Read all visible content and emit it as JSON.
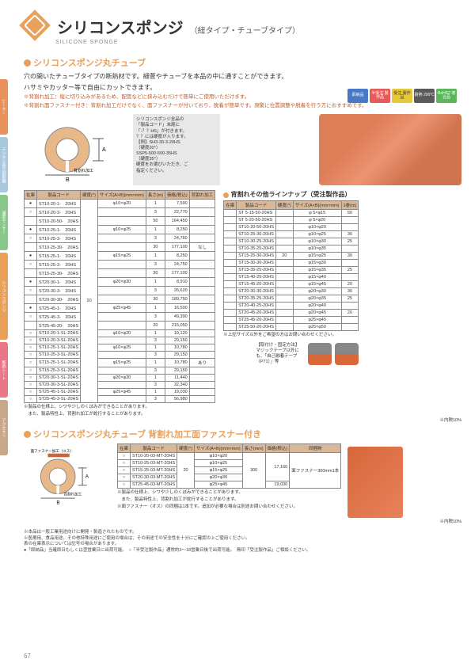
{
  "page_number": "67",
  "header": {
    "title_jp": "シリコンスポンジ",
    "title_sub": "（紐タイプ・チューブタイプ）",
    "title_en": "SILICONE SPONGE"
  },
  "sidebar_tabs": [
    {
      "label": "ヒーター",
      "color": "#e8915a"
    },
    {
      "label": "デジタル表示調節器",
      "color": "#a8c8e0"
    },
    {
      "label": "温度センサー",
      "color": "#88c888"
    },
    {
      "label": "シリコンスポンジ",
      "color": "#e8a05a"
    },
    {
      "label": "断熱シート",
      "color": "#e87888"
    },
    {
      "label": "アクセサリ",
      "color": "#c8a888"
    }
  ],
  "section1": {
    "title": "シリコンスポンジ丸チューブ",
    "bullet_color": "#e8a05a",
    "desc1": "穴の開いたチューブタイプの断熱材です。細菅やチューブを本品の中に通すことができます。",
    "desc2": "ハサミやカッター等で自由にカットできます。",
    "note1": "※背割れ加工：縦に切り込みがあるため、配管などに挟み込むだけで簡単にご使用いただけます。",
    "note2": "※背割れ面ファスナー付き：背割れ加工だけでなく、面ファスナーが付いており、脱着が簡単です。頻繁に位置調整や脱着を行う方におすすめです。",
    "diagram_label_a": "A",
    "diagram_label_b": "B",
    "diagram_label_cut": "背割れ加工"
  },
  "badges": [
    {
      "text": "即納品",
      "bg": "#4878c8"
    },
    {
      "text": "半受注\\n製作品",
      "bg": "#e85a5a"
    },
    {
      "text": "受注\\n製作品",
      "bg": "#e8c838"
    },
    {
      "text": "耐熱\\n200℃",
      "bg": "#5a5a5a"
    },
    {
      "text": "RoHS2\\n適合品",
      "bg": "#58b858"
    }
  ],
  "code_box": {
    "line1": "シリコンスポンジ全品の",
    "line2": "「製品コード」末尾に",
    "line3": "「-？？HS」が付きます。",
    "line4": "？？には硬度が入ります。",
    "line5": "【例】SH3-30-3-20HS",
    "line6": "（硬度20°）",
    "line7": "SSP5-500-500-35HS",
    "line8": "（硬度35°）",
    "line9": "硬度をお選びいただき、ご",
    "line10": "指定ください。"
  },
  "main_table": {
    "headers": [
      "在庫",
      "製品コード",
      "硬度(°)",
      "サイズ(A×B)(mm×mm)",
      "長さ(m)",
      "価格(税込)",
      "背割れ加工"
    ],
    "hardness": "20",
    "rows": [
      {
        "stock": "●",
        "code": "ST10-20-1-　20HS",
        "size": "φ10×φ20",
        "len": "1",
        "price": "7,590",
        "cut": ""
      },
      {
        "stock": "○",
        "code": "ST10-20-3-　20HS",
        "size": "",
        "len": "3",
        "price": "22,770",
        "cut": ""
      },
      {
        "stock": "",
        "code": "ST10-20-50-　20HS",
        "size": "",
        "len": "50",
        "price": "164,450",
        "cut": ""
      },
      {
        "stock": "●",
        "code": "ST10-25-1-　20HS",
        "size": "φ10×φ25",
        "len": "1",
        "price": "8,250",
        "cut": ""
      },
      {
        "stock": "○",
        "code": "ST10-25-3-　20HS",
        "size": "",
        "len": "3",
        "price": "24,750",
        "cut": ""
      },
      {
        "stock": "",
        "code": "ST10-25-30-　20HS",
        "size": "",
        "len": "30",
        "price": "177,100",
        "cut": "なし"
      },
      {
        "stock": "●",
        "code": "ST15-25-1-　20HS",
        "size": "φ15×φ25",
        "len": "1",
        "price": "8,250",
        "cut": ""
      },
      {
        "stock": "○",
        "code": "ST15-25-3-　20HS",
        "size": "",
        "len": "3",
        "price": "24,750",
        "cut": ""
      },
      {
        "stock": "",
        "code": "ST15-25-30-　20HS",
        "size": "",
        "len": "30",
        "price": "177,100",
        "cut": ""
      },
      {
        "stock": "●",
        "code": "ST20-30-1-　20HS",
        "size": "φ20×φ30",
        "len": "1",
        "price": "8,910",
        "cut": ""
      },
      {
        "stock": "○",
        "code": "ST20-30-3-　20HS",
        "size": "",
        "len": "3",
        "price": "26,620",
        "cut": ""
      },
      {
        "stock": "",
        "code": "ST20-30-30-　20HS",
        "size": "",
        "len": "30",
        "price": "189,750",
        "cut": ""
      },
      {
        "stock": "●",
        "code": "ST25-45-1-　20HS",
        "size": "φ25×φ45",
        "len": "1",
        "price": "16,500",
        "cut": ""
      },
      {
        "stock": "○",
        "code": "ST25-45-3-　20HS",
        "size": "",
        "len": "3",
        "price": "49,390",
        "cut": ""
      },
      {
        "stock": "",
        "code": "ST25-45-20-　20HS",
        "size": "",
        "len": "20",
        "price": "215,050",
        "cut": ""
      },
      {
        "stock": "○",
        "code": "ST10-20-1-SL-20HS",
        "size": "φ10×φ20",
        "len": "1",
        "price": "10,120",
        "cut": ""
      },
      {
        "stock": "○",
        "code": "ST10-20-3-SL-20HS",
        "size": "",
        "len": "3",
        "price": "29,150",
        "cut": ""
      },
      {
        "stock": "○",
        "code": "ST10-25-1-SL-20HS",
        "size": "φ10×φ25",
        "len": "1",
        "price": "10,780",
        "cut": ""
      },
      {
        "stock": "○",
        "code": "ST10-25-3-SL-20HS",
        "size": "",
        "len": "3",
        "price": "29,150",
        "cut": ""
      },
      {
        "stock": "○",
        "code": "ST15-25-1-SL-20HS",
        "size": "φ15×φ25",
        "len": "1",
        "price": "10,780",
        "cut": "あり"
      },
      {
        "stock": "○",
        "code": "ST15-25-3-SL-20HS",
        "size": "",
        "len": "3",
        "price": "29,150",
        "cut": ""
      },
      {
        "stock": "○",
        "code": "ST20-30-1-SL-20HS",
        "size": "φ20×φ30",
        "len": "1",
        "price": "11,440",
        "cut": ""
      },
      {
        "stock": "○",
        "code": "ST20-30-3-SL-20HS",
        "size": "",
        "len": "3",
        "price": "32,340",
        "cut": ""
      },
      {
        "stock": "○",
        "code": "ST25-45-1-SL-20HS",
        "size": "φ25×φ45",
        "len": "1",
        "price": "19,030",
        "cut": ""
      },
      {
        "stock": "○",
        "code": "ST25-45-3-SL-20HS",
        "size": "",
        "len": "3",
        "price": "56,980",
        "cut": ""
      }
    ],
    "note1": "※製品の仕様上、シワや少しのくぼみができることがあります。",
    "note2": "　また、製品特性上、背割れ加工が蛇行することがあります。",
    "note3": "※内税10%"
  },
  "lineup": {
    "title": "背割れその他ラインナップ（受注製作品）",
    "headers": [
      "在庫",
      "製品コード",
      "硬度(°)",
      "サイズ(A×B)(mm×mm)",
      "1巻(m)"
    ],
    "rows": [
      {
        "stock": "",
        "code": "ST 5-15-50-20HS",
        "hard": "",
        "size": "φ 5×φ15",
        "roll": "50"
      },
      {
        "stock": "",
        "code": "ST 5-20-50-20HS",
        "hard": "",
        "size": "φ 5×φ20",
        "roll": ""
      },
      {
        "stock": "",
        "code": "ST10-20-50-20HS",
        "hard": "",
        "size": "φ10×φ20",
        "roll": ""
      },
      {
        "stock": "",
        "code": "ST10-25-30-20HS",
        "hard": "",
        "size": "φ10×φ25",
        "roll": "30"
      },
      {
        "stock": "",
        "code": "ST10-30-25-20HS",
        "hard": "",
        "size": "φ10×φ30",
        "roll": "25"
      },
      {
        "stock": "",
        "code": "ST10-35-25-20HS",
        "hard": "",
        "size": "φ10×φ35",
        "roll": ""
      },
      {
        "stock": "",
        "code": "ST15-25-30-20HS",
        "hard": "20",
        "size": "φ15×φ25",
        "roll": "30"
      },
      {
        "stock": "",
        "code": "ST15-30-30-20HS",
        "hard": "",
        "size": "φ15×φ30",
        "roll": ""
      },
      {
        "stock": "",
        "code": "ST15-35-25-20HS",
        "hard": "",
        "size": "φ15×φ35",
        "roll": "25"
      },
      {
        "stock": "",
        "code": "ST15-40-25-20HS",
        "hard": "",
        "size": "φ15×φ40",
        "roll": ""
      },
      {
        "stock": "",
        "code": "ST15-45-20-20HS",
        "hard": "",
        "size": "φ15×φ45",
        "roll": "20"
      },
      {
        "stock": "",
        "code": "ST20-30-30-20HS",
        "hard": "",
        "size": "φ20×φ30",
        "roll": "30"
      },
      {
        "stock": "",
        "code": "ST20-35-25-20HS",
        "hard": "",
        "size": "φ20×φ35",
        "roll": "25"
      },
      {
        "stock": "",
        "code": "ST20-40-25-20HS",
        "hard": "",
        "size": "φ20×φ40",
        "roll": ""
      },
      {
        "stock": "",
        "code": "ST20-45-20-20HS",
        "hard": "",
        "size": "φ20×φ45",
        "roll": "20"
      },
      {
        "stock": "",
        "code": "ST25-45-20-20HS",
        "hard": "",
        "size": "φ25×φ45",
        "roll": ""
      },
      {
        "stock": "",
        "code": "ST25-50-20-20HS",
        "hard": "",
        "size": "φ25×φ50",
        "roll": ""
      }
    ],
    "note": "※上記サイズ以外をご希望の方はお問い合わせください。"
  },
  "mounting": {
    "title": "【取付け・固定方法】",
    "text": "マジックテープ以外にも、「自己融着テープ（P71）」等"
  },
  "section2": {
    "title": "シリコンスポンジ丸チューブ 背割れ加工面ファスナー付き",
    "bullet_color": "#e8a05a",
    "diagram_label_top": "面ファスナー加工（メス）",
    "diagram_label_cut": "背割れ加工",
    "diagram_label_a": "A",
    "diagram_label_b": "B"
  },
  "fastener_table": {
    "headers": [
      "在庫",
      "製品コード",
      "硬度(°)",
      "サイズ(A×B)(mm×mm)",
      "長さ(mm)",
      "価格(税込)",
      "同梱物"
    ],
    "hardness": "20",
    "len": "300",
    "price": "17,160",
    "include": "面ファスナー300mm1本",
    "rows": [
      {
        "stock": "○",
        "code": "ST10-20-03-MT-20HS",
        "size": "φ10×φ20",
        "price": ""
      },
      {
        "stock": "○",
        "code": "ST10-25-03-MT-20HS",
        "size": "φ10×φ25",
        "price": ""
      },
      {
        "stock": "○",
        "code": "ST15-25-03-MT-20HS",
        "size": "φ15×φ25",
        "price": ""
      },
      {
        "stock": "○",
        "code": "ST20-30-03-MT-20HS",
        "size": "φ20×φ30",
        "price": ""
      },
      {
        "stock": "○",
        "code": "ST25-45-03-MT-20HS",
        "size": "φ25×φ45",
        "price": "19,030"
      }
    ],
    "note1": "※製品の仕様上、シワや少しのくぼみができることがあります。",
    "note2": "　また、製品特性上、背割れ加工が蛇行することがあります。",
    "note3": "※面ファスナー（オス）の同梱は1本です。追加が必要な場合は別途お問い合わせください。",
    "note4": "※内税10%"
  },
  "footnotes": {
    "f1": "※本品は一般工業用途向けに開発・製造されたものです。",
    "f2": "※医療用、食品用途、その他特殊用途にご使用の場合は、その用途での安全性を十分にご確認の上ご使用ください。",
    "f3": "表の在庫表示については記号の場合があります。",
    "f4": "●「即納品」当確即日もしくは翌営業日に出荷可能。　○「半受注製作品」通常約3～18営業日後で出荷可能。　無印「受注製作品」ご相談ください。"
  }
}
